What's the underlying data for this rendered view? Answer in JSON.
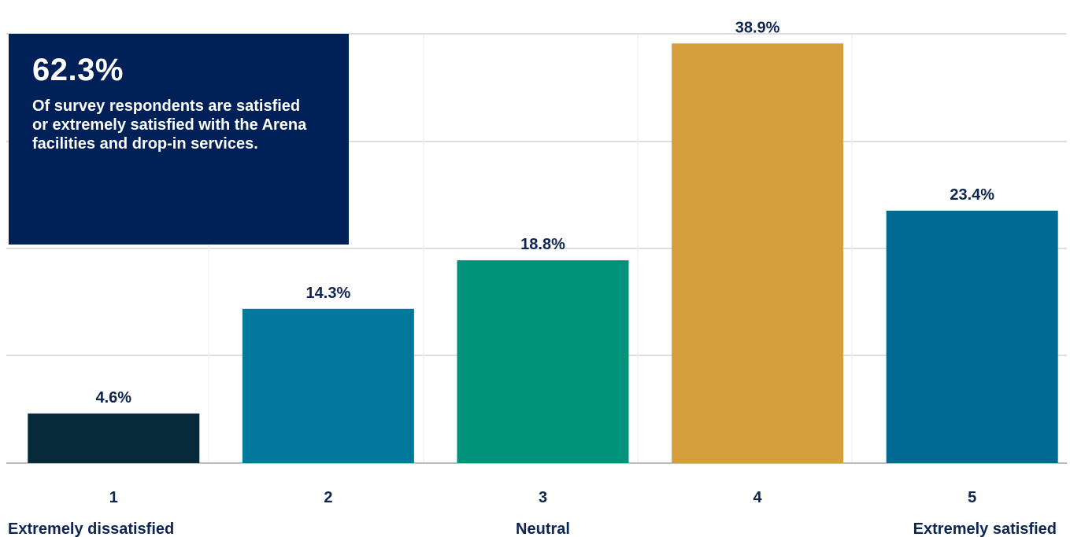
{
  "chart_data": {
    "type": "bar",
    "categories": [
      "1",
      "2",
      "3",
      "4",
      "5"
    ],
    "category_descriptions": [
      "Extremely dissatisfied",
      "",
      "Neutral",
      "",
      "Extremely satisfied"
    ],
    "values": [
      4.6,
      14.3,
      18.8,
      38.9,
      23.4
    ],
    "data_labels": [
      "4.6%",
      "14.3%",
      "18.8%",
      "38.9%",
      "23.4%"
    ],
    "bar_colors": [
      "#062a3a",
      "#00799a",
      "#00937a",
      "#d49e3c",
      "#006a91"
    ],
    "ylim": [
      0,
      40
    ],
    "grid": true,
    "title": "",
    "xlabel": "",
    "ylabel": ""
  },
  "callout": {
    "stat": "62.3%",
    "text": "Of survey respondents are satisfied or extremely satisfied with the Arena facilities and drop-in services."
  },
  "colors": {
    "label_text": "#0e2552",
    "callout_background": "#002058",
    "gridline": "#d4d4d4",
    "baseline": "#bdbdbd"
  }
}
